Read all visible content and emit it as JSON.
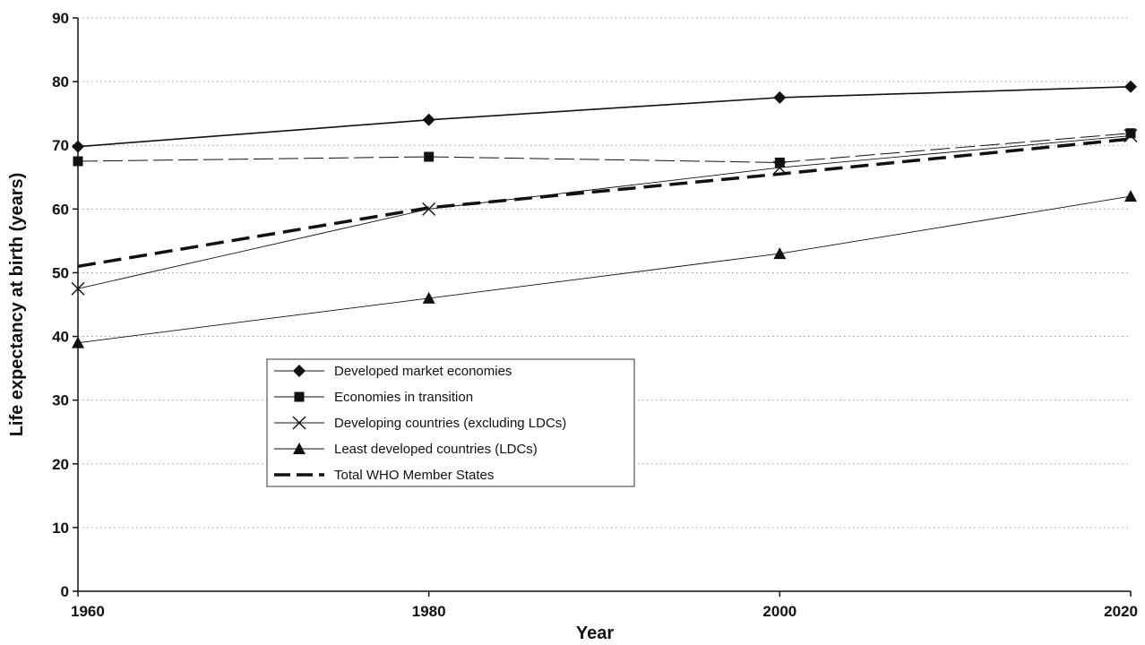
{
  "chart_data": {
    "type": "line",
    "title": "",
    "xlabel": "Year",
    "ylabel": "Life expectancy at birth (years)",
    "x": [
      1960,
      1980,
      2000,
      2020
    ],
    "x_ticks": [
      "1960",
      "1980",
      "2000",
      "2020"
    ],
    "y_ticks": [
      "0",
      "10",
      "20",
      "30",
      "40",
      "50",
      "60",
      "70",
      "80",
      "90"
    ],
    "xlim": [
      1960,
      2020
    ],
    "ylim": [
      0,
      90
    ],
    "grid": "horizontal dotted",
    "legend_position": "center-left",
    "series": [
      {
        "name": "Developed market economies",
        "marker": "diamond",
        "style": "solid",
        "values": [
          69.8,
          74,
          77.5,
          79.2
        ]
      },
      {
        "name": "Economies in transition",
        "marker": "square",
        "style": "dash",
        "values": [
          67.5,
          68.2,
          67.3,
          71.9
        ]
      },
      {
        "name": "Developing countries (excluding LDCs)",
        "marker": "x",
        "style": "solid-thin",
        "values": [
          47.5,
          60,
          66.5,
          71.5
        ]
      },
      {
        "name": "Least developed countries (LDCs)",
        "marker": "triangle",
        "style": "solid-thin",
        "values": [
          39,
          46,
          53,
          62
        ]
      },
      {
        "name": "Total WHO Member States",
        "marker": "none",
        "style": "thick-dash",
        "values": [
          51,
          60.2,
          65.5,
          71
        ]
      }
    ]
  }
}
